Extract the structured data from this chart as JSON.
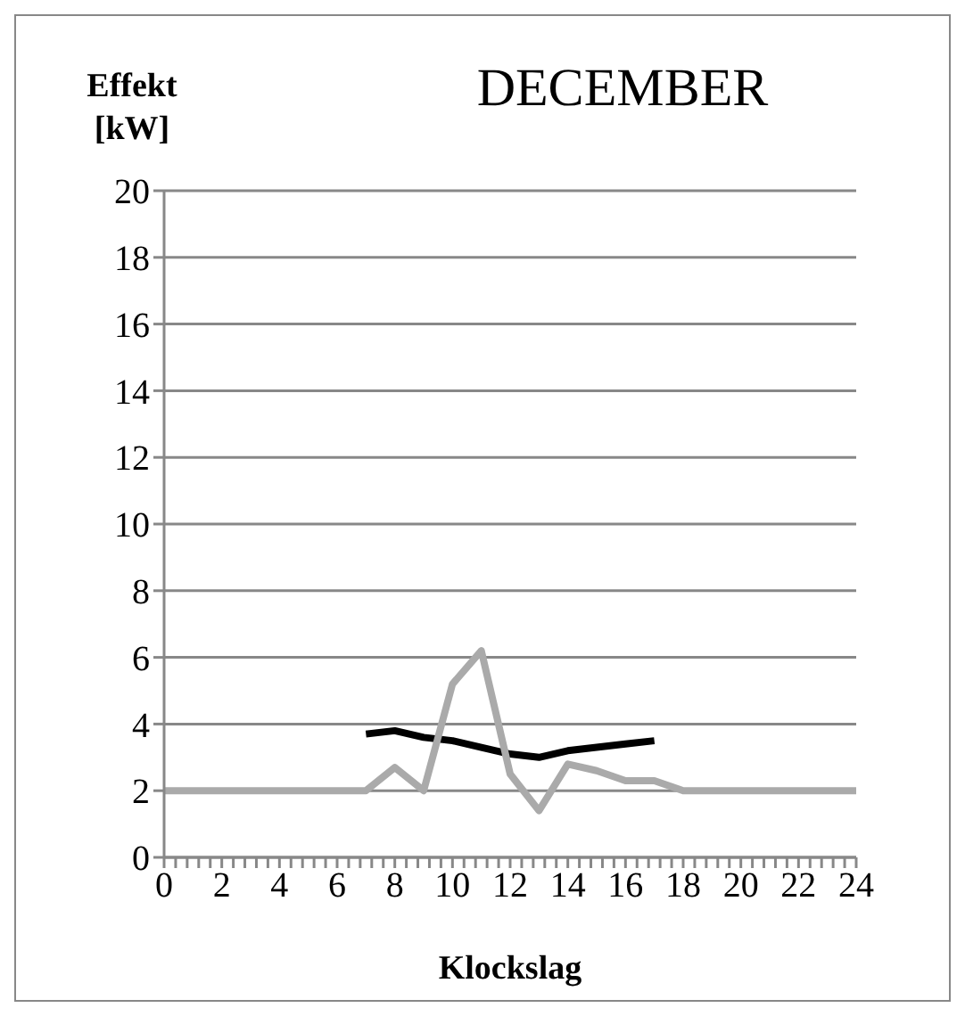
{
  "chart_data": {
    "type": "line",
    "title": "DECEMBER",
    "xlabel": "Klockslag",
    "ylabel": "Effekt [kW]",
    "xlim": [
      0,
      24
    ],
    "xticks": [
      0,
      {
        "value": 0.4,
        "label": null
      },
      {
        "value": 0.8,
        "label": null
      },
      {
        "value": 1.2,
        "label": null
      },
      {
        "value": 1.6,
        "label": null
      },
      2,
      {
        "value": 2.4,
        "label": null
      },
      {
        "value": 2.8,
        "label": null
      },
      {
        "value": 3.2,
        "label": null
      },
      {
        "value": 3.6,
        "label": null
      },
      4,
      {
        "value": 4.4,
        "label": null
      },
      {
        "value": 4.8,
        "label": null
      },
      {
        "value": 5.2,
        "label": null
      },
      {
        "value": 5.6,
        "label": null
      },
      6,
      {
        "value": 6.4,
        "label": null
      },
      {
        "value": 6.8,
        "label": null
      },
      {
        "value": 7.2,
        "label": null
      },
      {
        "value": 7.6,
        "label": null
      },
      8,
      {
        "value": 8.4,
        "label": null
      },
      {
        "value": 8.8,
        "label": null
      },
      {
        "value": 9.2,
        "label": null
      },
      {
        "value": 9.6,
        "label": null
      },
      10,
      {
        "value": 10.4,
        "label": null
      },
      {
        "value": 10.8,
        "label": null
      },
      {
        "value": 11.2,
        "label": null
      },
      {
        "value": 11.6,
        "label": null
      },
      12,
      {
        "value": 12.4,
        "label": null
      },
      {
        "value": 12.8,
        "label": null
      },
      {
        "value": 13.2,
        "label": null
      },
      {
        "value": 13.6,
        "label": null
      },
      14,
      {
        "value": 14.4,
        "label": null
      },
      {
        "value": 14.8,
        "label": null
      },
      {
        "value": 15.2,
        "label": null
      },
      {
        "value": 15.6,
        "label": null
      },
      16,
      {
        "value": 16.4,
        "label": null
      },
      {
        "value": 16.8,
        "label": null
      },
      {
        "value": 17.2,
        "label": null
      },
      {
        "value": 17.6,
        "label": null
      },
      18,
      {
        "value": 18.4,
        "label": null
      },
      {
        "value": 18.8,
        "label": null
      },
      {
        "value": 19.2,
        "label": null
      },
      {
        "value": 19.6,
        "label": null
      },
      20,
      {
        "value": 20.4,
        "label": null
      },
      {
        "value": 20.8,
        "label": null
      },
      {
        "value": 21.2,
        "label": null
      },
      {
        "value": 21.6,
        "label": null
      },
      22,
      {
        "value": 22.4,
        "label": null
      },
      {
        "value": 22.8,
        "label": null
      },
      {
        "value": 23.2,
        "label": null
      },
      {
        "value": 23.6,
        "label": null
      },
      24
    ],
    "ylim": [
      0,
      20
    ],
    "yticks": [
      0,
      2,
      4,
      6,
      8,
      10,
      12,
      14,
      16,
      18,
      20
    ],
    "grid": "y",
    "legend": false,
    "marker": "none",
    "line_style": "solid",
    "series": [
      {
        "color": "#000000",
        "x": [
          7,
          8,
          9,
          10,
          11,
          12,
          13,
          14,
          15,
          16,
          17
        ],
        "values": [
          3.7,
          3.8,
          3.6,
          3.5,
          3.3,
          3.1,
          3.0,
          3.2,
          3.3,
          3.4,
          3.5
        ]
      },
      {
        "color": "#aaaaaa",
        "x": [
          0,
          1,
          2,
          3,
          4,
          5,
          6,
          7,
          8,
          9,
          10,
          11,
          12,
          13,
          14,
          15,
          16,
          17,
          18,
          19,
          20,
          21,
          22,
          23,
          24
        ],
        "values": [
          2,
          2,
          2,
          2,
          2,
          2,
          2,
          2,
          2.7,
          2,
          5.2,
          6.2,
          2.5,
          1.4,
          2.8,
          2.6,
          2.3,
          2.3,
          2,
          2,
          2,
          2,
          2,
          2,
          2
        ]
      }
    ]
  }
}
